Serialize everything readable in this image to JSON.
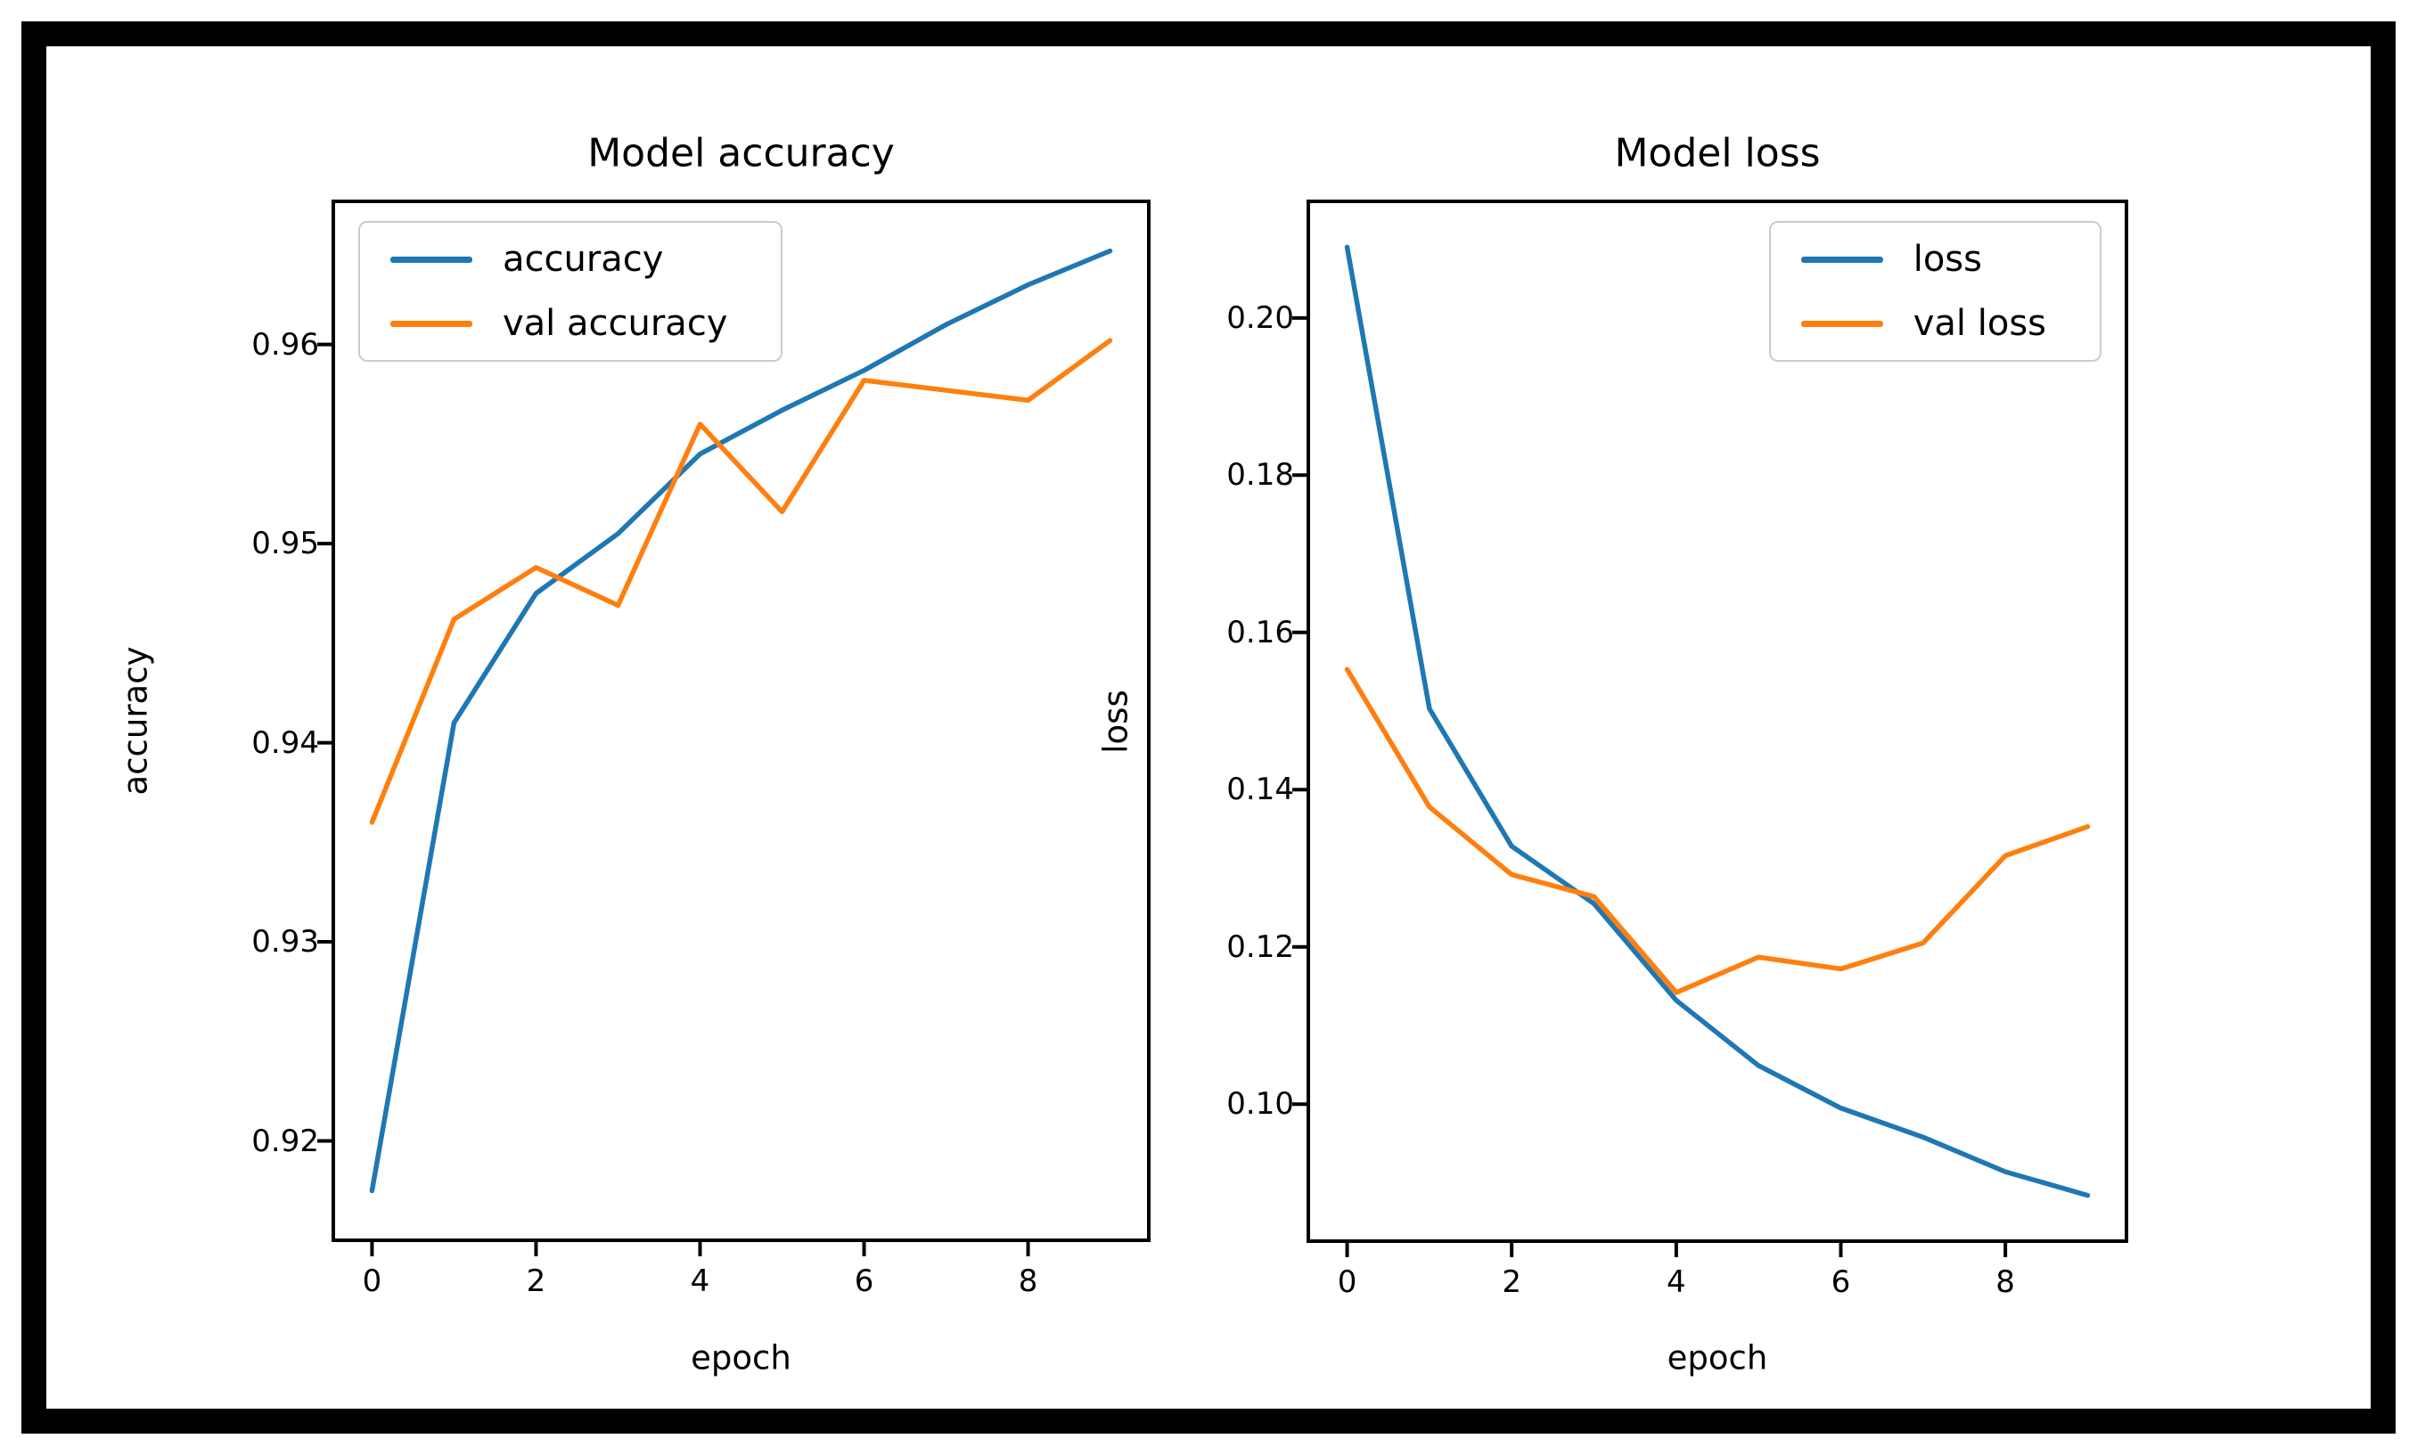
{
  "figure": {
    "background": "#ffffff",
    "frame_color": "#000000",
    "text_color": "#000000",
    "accent_blue": "#1f77b4",
    "accent_orange": "#ff7f0e"
  },
  "chart_data": [
    {
      "type": "line",
      "title": "Model accuracy",
      "xlabel": "epoch",
      "ylabel": "accuracy",
      "x": [
        0,
        1,
        2,
        3,
        4,
        5,
        6,
        7,
        8,
        9
      ],
      "series": [
        {
          "name": "accuracy",
          "color": "#1f77b4",
          "values": [
            0.9175,
            0.941,
            0.9475,
            0.9505,
            0.9545,
            0.9567,
            0.9587,
            0.961,
            0.963,
            0.9647
          ]
        },
        {
          "name": "val accuracy",
          "color": "#ff7f0e",
          "values": [
            0.936,
            0.9462,
            0.9488,
            0.9469,
            0.956,
            0.9516,
            0.9582,
            0.9577,
            0.9572,
            0.9602
          ]
        }
      ],
      "xlim": [
        -0.45,
        9.45
      ],
      "ylim": [
        0.9151,
        0.9671
      ],
      "xticks": [
        0,
        2,
        4,
        6,
        8
      ],
      "yticks": [
        0.92,
        0.93,
        0.94,
        0.95,
        0.96
      ],
      "tick_decimals": 2,
      "legend_position": "top-left",
      "grid": false
    },
    {
      "type": "line",
      "title": "Model loss",
      "xlabel": "epoch",
      "ylabel": "loss",
      "x": [
        0,
        1,
        2,
        3,
        4,
        5,
        6,
        7,
        8,
        9
      ],
      "series": [
        {
          "name": "loss",
          "color": "#1f77b4",
          "values": [
            0.209,
            0.1503,
            0.1328,
            0.1255,
            0.1132,
            0.1049,
            0.0995,
            0.0958,
            0.0914,
            0.0884
          ]
        },
        {
          "name": "val loss",
          "color": "#ff7f0e",
          "values": [
            0.1553,
            0.1378,
            0.1292,
            0.1264,
            0.1142,
            0.1187,
            0.1172,
            0.1205,
            0.1316,
            0.1353
          ]
        }
      ],
      "xlim": [
        -0.45,
        9.45
      ],
      "ylim": [
        0.0828,
        0.2146
      ],
      "xticks": [
        0,
        2,
        4,
        6,
        8
      ],
      "yticks": [
        0.1,
        0.12,
        0.14,
        0.16,
        0.18,
        0.2
      ],
      "tick_decimals": 2,
      "legend_position": "top-right",
      "grid": false
    }
  ]
}
